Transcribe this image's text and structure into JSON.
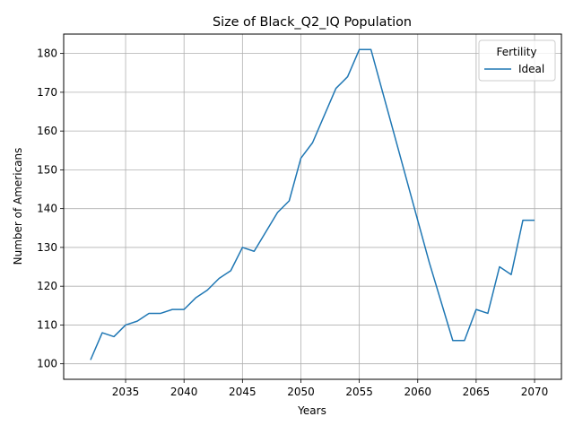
{
  "chart_data": {
    "type": "line",
    "title": "Size of Black_Q2_IQ Population",
    "xlabel": "Years",
    "ylabel": "Number of Americans",
    "xlim": [
      2029.7,
      2072.3
    ],
    "ylim": [
      96.0,
      185.0
    ],
    "xticks": [
      2035,
      2040,
      2045,
      2050,
      2055,
      2060,
      2065,
      2070
    ],
    "yticks": [
      100,
      110,
      120,
      130,
      140,
      150,
      160,
      170,
      180
    ],
    "grid": true,
    "legend": {
      "title": "Fertility",
      "placement": "top-right"
    },
    "series": [
      {
        "name": "Ideal",
        "color": "#1f77b4",
        "x": [
          2032,
          2033,
          2034,
          2035,
          2036,
          2037,
          2038,
          2039,
          2040,
          2041,
          2042,
          2043,
          2044,
          2045,
          2046,
          2047,
          2048,
          2049,
          2050,
          2051,
          2052,
          2053,
          2054,
          2055,
          2056,
          2057,
          2058,
          2059,
          2060,
          2061,
          2062,
          2063,
          2064,
          2065,
          2066,
          2067,
          2068,
          2069,
          2070
        ],
        "values": [
          101,
          108,
          107,
          110,
          111,
          113,
          113,
          114,
          114,
          117,
          119,
          122,
          124,
          130,
          129,
          134,
          139,
          142,
          153,
          157,
          164,
          171,
          174,
          181,
          181,
          170,
          159,
          148,
          137,
          126,
          116,
          106,
          106,
          114,
          113,
          125,
          123,
          137,
          137
        ]
      }
    ]
  }
}
